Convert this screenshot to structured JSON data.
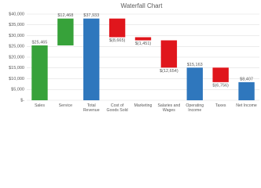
{
  "chart_data": {
    "type": "waterfall",
    "title": "Waterfall Chart",
    "categories": [
      "Sales",
      "Service",
      "Total Revenue",
      "Cost of Goods Sold",
      "Marketing",
      "Salaries and Wages",
      "Operating Income",
      "Taxes",
      "Net Income"
    ],
    "values": [
      25465,
      12468,
      37933,
      -8665,
      -1451,
      -12654,
      15163,
      -6756,
      8407
    ],
    "value_labels": [
      "$25,465",
      "$12,468",
      "$37,933",
      "$(8,665)",
      "$(1,451)",
      "$(12,654)",
      "$15,163",
      "$(6,756)",
      "$8,407"
    ],
    "bar_kinds": [
      "increase",
      "increase",
      "total",
      "decrease",
      "decrease",
      "decrease",
      "total",
      "decrease",
      "total"
    ],
    "colors": {
      "increase": "#37a23a",
      "decrease": "#e0161c",
      "total": "#2f77bd"
    },
    "ylim": [
      0,
      40000
    ],
    "yticks": [
      {
        "value": 0,
        "label": "$-"
      },
      {
        "value": 5000,
        "label": "$5,000"
      },
      {
        "value": 10000,
        "label": "$10,000"
      },
      {
        "value": 15000,
        "label": "$15,000"
      },
      {
        "value": 20000,
        "label": "$20,000"
      },
      {
        "value": 25000,
        "label": "$25,000"
      },
      {
        "value": 30000,
        "label": "$30,000"
      },
      {
        "value": 35000,
        "label": "$35,000"
      },
      {
        "value": 40000,
        "label": "$40,000"
      }
    ],
    "grid": true
  }
}
